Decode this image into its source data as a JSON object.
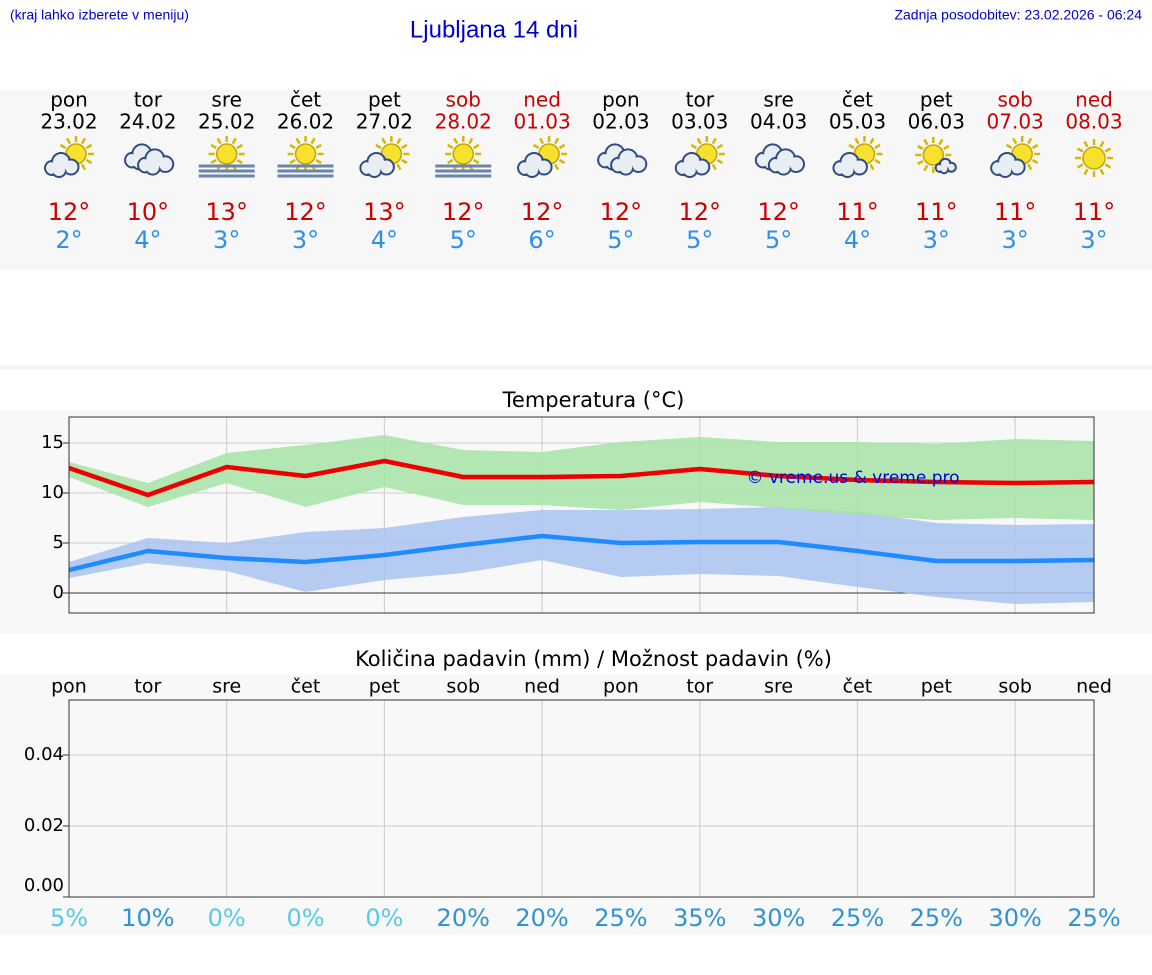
{
  "header": {
    "note": "(kraj lahko izberete v meniju)",
    "title": "Ljubljana 14 dni",
    "updated": "Zadnja posodobitev: 23.02.2026 - 06:24"
  },
  "days": [
    {
      "weekday": "pon",
      "date": "23.02",
      "color": "#000000",
      "icon": "sun-cloud",
      "max": "12°",
      "min": "2°"
    },
    {
      "weekday": "tor",
      "date": "24.02",
      "color": "#000000",
      "icon": "cloudy",
      "max": "10°",
      "min": "4°"
    },
    {
      "weekday": "sre",
      "date": "25.02",
      "color": "#000000",
      "icon": "sun-fog",
      "max": "13°",
      "min": "3°"
    },
    {
      "weekday": "čet",
      "date": "26.02",
      "color": "#000000",
      "icon": "sun-fog",
      "max": "12°",
      "min": "3°"
    },
    {
      "weekday": "pet",
      "date": "27.02",
      "color": "#000000",
      "icon": "sun-cloud",
      "max": "13°",
      "min": "4°"
    },
    {
      "weekday": "sob",
      "date": "28.02",
      "color": "#cc0000",
      "icon": "sun-fog",
      "max": "12°",
      "min": "5°"
    },
    {
      "weekday": "ned",
      "date": "01.03",
      "color": "#cc0000",
      "icon": "sun-cloud",
      "max": "12°",
      "min": "6°"
    },
    {
      "weekday": "pon",
      "date": "02.03",
      "color": "#000000",
      "icon": "cloudy",
      "max": "12°",
      "min": "5°"
    },
    {
      "weekday": "tor",
      "date": "03.03",
      "color": "#000000",
      "icon": "sun-cloud",
      "max": "12°",
      "min": "5°"
    },
    {
      "weekday": "sre",
      "date": "04.03",
      "color": "#000000",
      "icon": "cloudy",
      "max": "12°",
      "min": "5°"
    },
    {
      "weekday": "čet",
      "date": "05.03",
      "color": "#000000",
      "icon": "sun-cloud",
      "max": "11°",
      "min": "4°"
    },
    {
      "weekday": "pet",
      "date": "06.03",
      "color": "#000000",
      "icon": "sun-small-cloud",
      "max": "11°",
      "min": "3°"
    },
    {
      "weekday": "sob",
      "date": "07.03",
      "color": "#cc0000",
      "icon": "sun-cloud",
      "max": "11°",
      "min": "3°"
    },
    {
      "weekday": "ned",
      "date": "08.03",
      "color": "#cc0000",
      "icon": "sun",
      "max": "11°",
      "min": "3°"
    }
  ],
  "chart_data": [
    {
      "type": "line",
      "title": "Temperatura (°C)",
      "ylim": [
        -2,
        17.6
      ],
      "yticks": [
        0,
        5,
        10,
        15
      ],
      "grid": true,
      "annotation": "© vreme.us & vreme.pro",
      "bands": [
        {
          "color": "#a9c3f0",
          "upper": [
            3.1,
            5.5,
            5.0,
            6.1,
            6.5,
            7.6,
            8.3,
            8.3,
            8.4,
            8.6,
            8.1,
            7.0,
            6.8,
            6.9
          ],
          "lower": [
            1.5,
            3.0,
            2.2,
            0.1,
            1.3,
            2.0,
            3.3,
            1.6,
            1.9,
            1.7,
            0.6,
            -0.4,
            -1.1,
            -0.9
          ]
        },
        {
          "color": "#a6e3a6",
          "upper": [
            13.1,
            11.0,
            14.0,
            14.8,
            15.8,
            14.3,
            14.1,
            15.1,
            15.6,
            15.1,
            15.1,
            14.9,
            15.4,
            15.2
          ],
          "lower": [
            11.6,
            8.6,
            11.0,
            8.6,
            10.6,
            8.8,
            8.8,
            8.3,
            9.1,
            8.5,
            7.8,
            7.3,
            7.5,
            7.3
          ]
        }
      ],
      "series": [
        {
          "color": "#ee0000",
          "values": [
            12.5,
            9.8,
            12.6,
            11.7,
            13.2,
            11.6,
            11.6,
            11.7,
            12.4,
            11.7,
            11.3,
            11.1,
            11.0,
            11.1
          ]
        },
        {
          "color": "#1e8cff",
          "values": [
            2.3,
            4.2,
            3.5,
            3.1,
            3.8,
            4.8,
            5.7,
            5.0,
            5.1,
            5.1,
            4.2,
            3.2,
            3.2,
            3.3
          ]
        }
      ]
    },
    {
      "type": "bar",
      "title": "Količina padavin (mm) / Možnost padavin (%)",
      "categories": [
        "pon",
        "tor",
        "sre",
        "čet",
        "pet",
        "sob",
        "ned",
        "pon",
        "tor",
        "sre",
        "čet",
        "pet",
        "sob",
        "ned"
      ],
      "values": [
        0,
        0,
        0,
        0,
        0,
        0,
        0,
        0,
        0,
        0,
        0,
        0,
        0,
        0
      ],
      "color": "#3366cc",
      "ylim": [
        0,
        0.0555
      ],
      "yticks": [
        {
          "value": 0,
          "label": "0.00"
        },
        {
          "value": 0.02,
          "label": "0.02"
        },
        {
          "value": 0.04,
          "label": "0.04"
        }
      ],
      "grid": true,
      "probability": {
        "values": [
          5,
          10,
          0,
          0,
          0,
          20,
          20,
          25,
          35,
          30,
          25,
          25,
          30,
          25
        ],
        "value_labels": [
          "5%",
          "10%",
          "0%",
          "0%",
          "0%",
          "20%",
          "20%",
          "25%",
          "35%",
          "30%",
          "25%",
          "25%",
          "30%",
          "25%"
        ],
        "colors": [
          "#55cce6",
          "#2f93d3",
          "#55cce6",
          "#55cce6",
          "#55cce6",
          "#2f93d3",
          "#2f93d3",
          "#2f93d3",
          "#2f93d3",
          "#2f93d3",
          "#2f93d3",
          "#2f93d3",
          "#2f93d3",
          "#2f93d3"
        ]
      }
    }
  ]
}
